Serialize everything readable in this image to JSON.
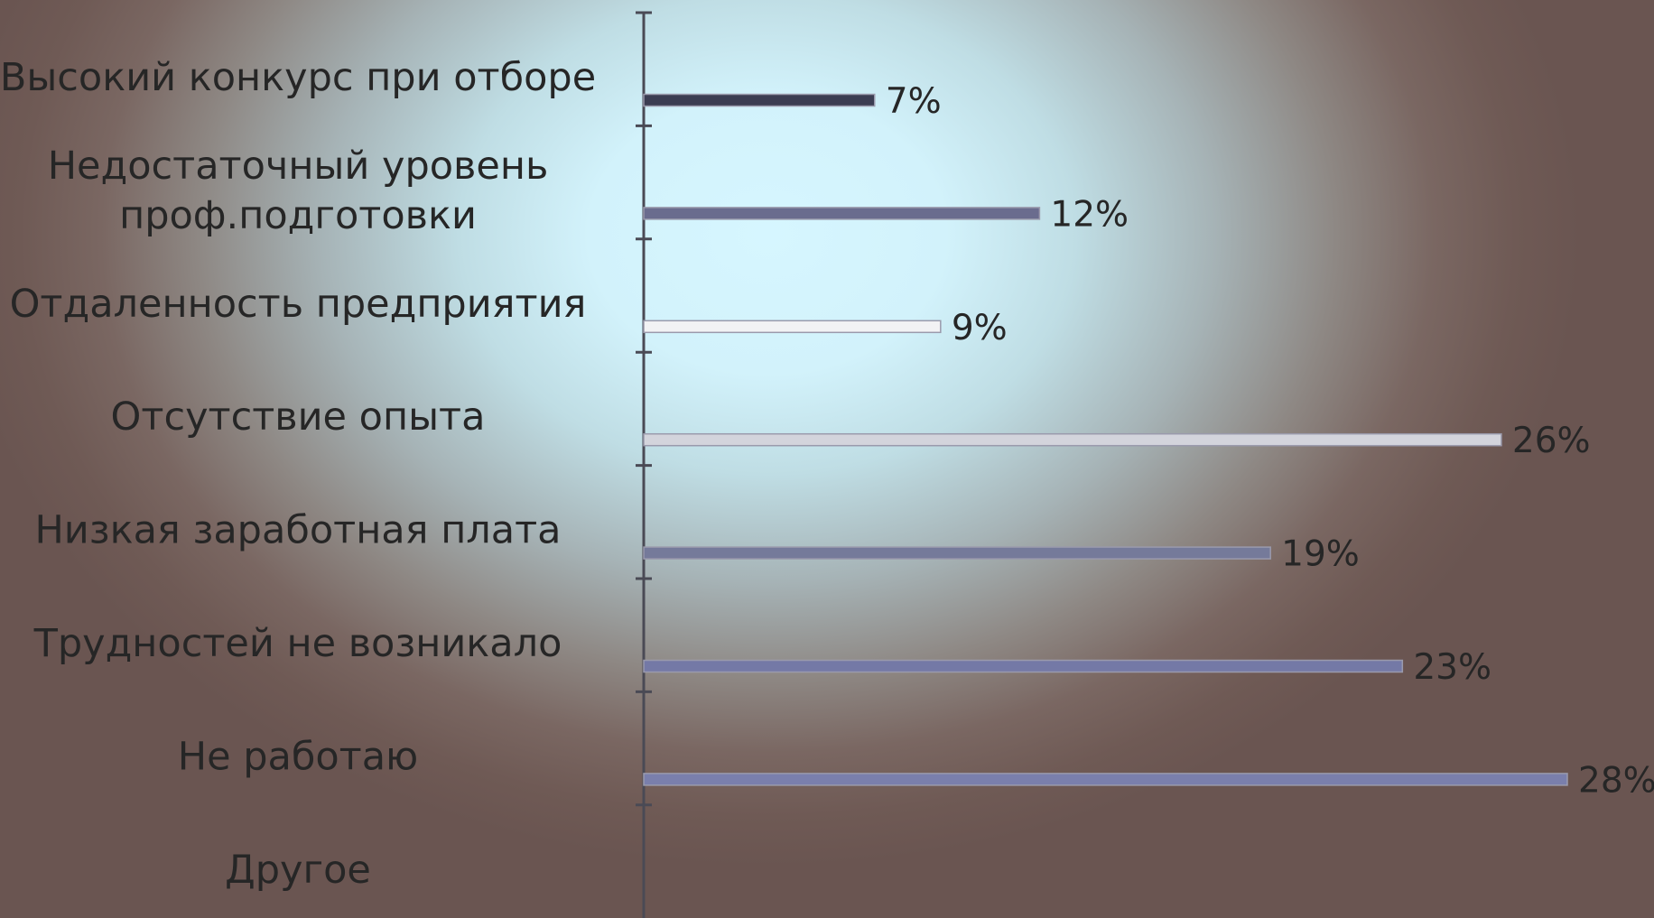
{
  "chart_data": {
    "type": "bar",
    "orientation": "horizontal",
    "categories": [
      [
        "Высокий конкурс при отборе"
      ],
      [
        "Недостаточный уровень",
        "проф.подготовки"
      ],
      [
        "Отдаленность предприятия"
      ],
      [
        "Отсутствие опыта"
      ],
      [
        "Низкая заработная плата"
      ],
      [
        "Трудностей не возникало"
      ],
      [
        "Не работаю"
      ],
      [
        "Другое"
      ]
    ],
    "values": [
      7,
      12,
      9,
      26,
      19,
      23,
      28,
      null
    ],
    "value_labels": [
      "7%",
      "12%",
      "9%",
      "26%",
      "19%",
      "23%",
      "28%",
      ""
    ],
    "bar_colors": [
      "#3b3d52",
      "#6a6c8e",
      "#f2f2f4",
      "#d3d4dc",
      "#757a9a",
      "#7479a6",
      "#7a7fac",
      "#8a8fb5"
    ],
    "xlim": [
      0,
      28
    ],
    "title": "",
    "xlabel": "",
    "ylabel": "",
    "grid": false,
    "legend": "none"
  }
}
